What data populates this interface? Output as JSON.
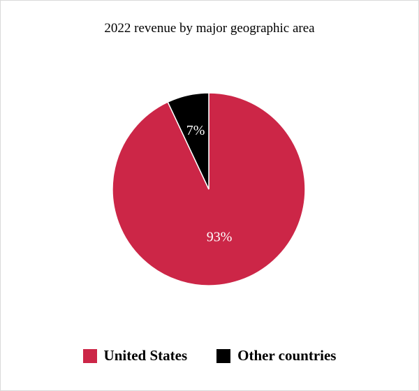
{
  "chart_data": {
    "type": "pie",
    "title": "2022 revenue by major geographic area",
    "categories": [
      "United States",
      "Other countries"
    ],
    "values": [
      93,
      7
    ],
    "data_labels": [
      "93%",
      "7%"
    ],
    "colors": [
      "#cc2647",
      "#000000"
    ],
    "legend_position": "bottom"
  }
}
